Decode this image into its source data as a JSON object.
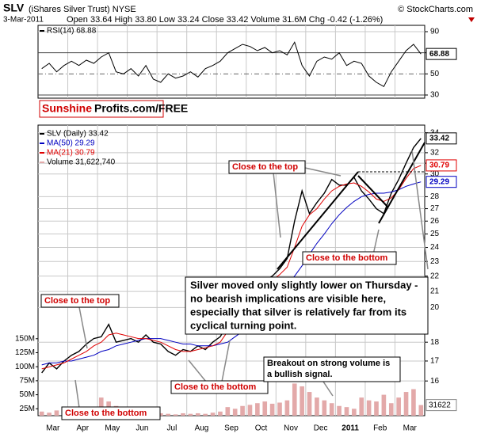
{
  "header": {
    "symbol": "SLV",
    "name": "(iShares Silver Trust) NYSE",
    "credit": "© StockCharts.com",
    "date": "3-Mar-2011",
    "quote": "Open 33.64 High 33.80 Low 33.24 Close 33.42 Volume 31.6M Chg -0.42 (-1.26%)"
  },
  "watermark": {
    "red": "Sunshine",
    "black": "Profits.com/FREE"
  },
  "annotations": {
    "top_right": "Close to the top",
    "bottom_right": "Close to the bottom",
    "comment": [
      "Silver moved only slightly lower on Thursday -",
      "no bearish implications are visible here,",
      "especially that silver is relatively far from its",
      "cyclical turning point."
    ],
    "top_left": "Close to the top",
    "bottom_mid": "Close to the bottom",
    "bottom_left": "Close to the bottom",
    "breakout": [
      "Breakout on strong volume is",
      "a bullish signal."
    ]
  },
  "chart_data": [
    {
      "type": "line",
      "ylim": [
        27,
        96
      ],
      "yticks": [
        30,
        50,
        70,
        90
      ],
      "grid": true,
      "series": [
        {
          "name": "RSI(14) 68.88",
          "color": "#000000",
          "values": [
            55,
            60,
            52,
            58,
            62,
            58,
            63,
            60,
            66,
            70,
            52,
            50,
            55,
            48,
            58,
            45,
            42,
            50,
            46,
            48,
            52,
            47,
            55,
            58,
            62,
            70,
            74,
            78,
            76,
            72,
            75,
            70,
            72,
            68,
            80,
            58,
            48,
            62,
            66,
            64,
            70,
            58,
            62,
            60,
            48,
            42,
            38,
            52,
            62,
            72,
            78,
            68.88
          ]
        }
      ]
    },
    {
      "type": "line",
      "log_scale": true,
      "ylim": [
        14.4,
        34.8
      ],
      "yticks": [
        16,
        17,
        18,
        20,
        21,
        22,
        23,
        24,
        25,
        26,
        27,
        28,
        30,
        31,
        32,
        34
      ],
      "y2lim": [
        12.7,
        531
      ],
      "y2ticks": [
        {
          "value": 25,
          "label": "25M"
        },
        {
          "value": 50,
          "label": "50M"
        },
        {
          "value": 75,
          "label": "75M"
        },
        {
          "value": 100,
          "label": "100M"
        },
        {
          "value": 125,
          "label": "125M"
        },
        {
          "value": 150,
          "label": "150M"
        }
      ],
      "xtick_labels": [
        "Mar",
        "Apr",
        "May",
        "Jun",
        "Jul",
        "Aug",
        "Sep",
        "Oct",
        "Nov",
        "Dec",
        "2011",
        "Feb",
        "Mar"
      ],
      "grid": true,
      "series": [
        {
          "name": "SLV (Daily) 33.42",
          "color": "#000000",
          "values": [
            16.4,
            16.9,
            16.6,
            17.0,
            17.3,
            17.5,
            17.9,
            18.2,
            18.3,
            19.0,
            18.0,
            18.1,
            18.2,
            18.0,
            18.4,
            18.0,
            17.9,
            17.5,
            17.3,
            17.6,
            17.5,
            17.8,
            17.6,
            18.0,
            18.3,
            19.0,
            19.5,
            20.1,
            20.6,
            21.3,
            21.7,
            22.0,
            22.5,
            23.2,
            26.0,
            28.5,
            26.6,
            27.5,
            28.3,
            29.5,
            29.0,
            29.0,
            29.7,
            28.5,
            27.8,
            27.0,
            26.6,
            28.3,
            29.5,
            31.0,
            32.5,
            33.42
          ]
        },
        {
          "name": "MA(50) 29.29",
          "color": "#0000c0",
          "values": [
            16.8,
            16.9,
            16.9,
            17.0,
            17.0,
            17.1,
            17.2,
            17.3,
            17.5,
            17.6,
            17.8,
            17.9,
            18.0,
            18.1,
            18.2,
            18.2,
            18.2,
            18.1,
            18.0,
            17.9,
            17.9,
            17.8,
            17.8,
            17.8,
            17.9,
            18.0,
            18.3,
            18.6,
            19.0,
            19.4,
            19.9,
            20.4,
            20.9,
            21.4,
            22.0,
            22.7,
            23.5,
            24.3,
            25.0,
            25.8,
            26.5,
            27.1,
            27.6,
            28.0,
            28.2,
            28.3,
            28.3,
            28.4,
            28.6,
            28.9,
            29.1,
            29.29
          ]
        },
        {
          "name": "MA(21) 30.79",
          "color": "#e00000",
          "values": [
            16.6,
            16.7,
            16.8,
            16.9,
            17.1,
            17.3,
            17.5,
            17.8,
            18.0,
            18.4,
            18.5,
            18.4,
            18.3,
            18.2,
            18.2,
            18.1,
            18.0,
            17.8,
            17.6,
            17.5,
            17.5,
            17.6,
            17.7,
            17.8,
            18.0,
            18.6,
            19.1,
            19.6,
            20.1,
            20.7,
            21.2,
            21.7,
            22.1,
            22.6,
            24.0,
            25.6,
            26.5,
            27.0,
            27.8,
            28.5,
            28.9,
            29.1,
            29.2,
            28.9,
            28.4,
            27.8,
            27.6,
            27.9,
            28.6,
            29.6,
            30.5,
            30.79
          ]
        },
        {
          "name": "Volume 31,622,740",
          "type": "bar",
          "axis": "y2",
          "color": "#e3a9a9",
          "last_value_label": "31622",
          "values": [
            20,
            18,
            22,
            20,
            19,
            21,
            25,
            22,
            45,
            38,
            30,
            25,
            22,
            20,
            18,
            19,
            17,
            16,
            15,
            17,
            16,
            17,
            16,
            18,
            20,
            28,
            25,
            30,
            32,
            35,
            38,
            34,
            36,
            40,
            70,
            65,
            55,
            45,
            40,
            35,
            30,
            28,
            25,
            45,
            40,
            38,
            50,
            35,
            45,
            55,
            60,
            31.6
          ]
        }
      ]
    }
  ]
}
